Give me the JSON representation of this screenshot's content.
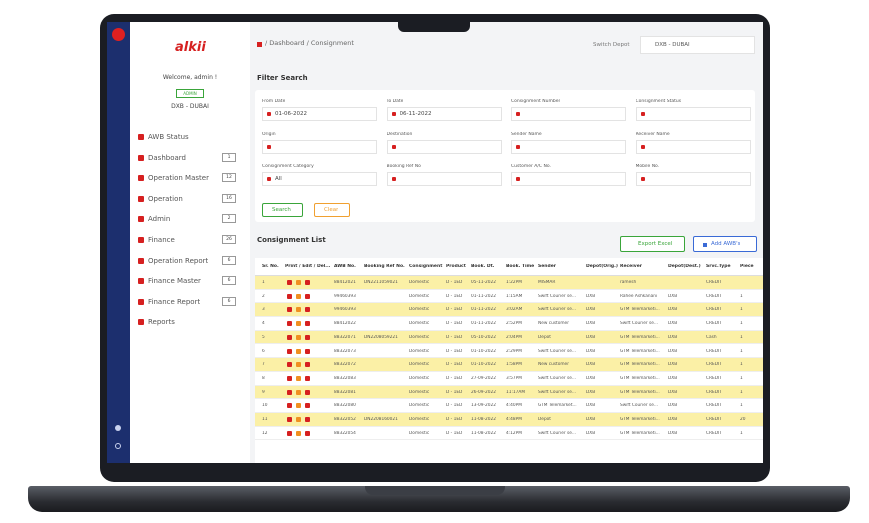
{
  "sidebar": {
    "logo": "alkii",
    "welcome": "Welcome, admin !",
    "role": "ADMIN",
    "depot": "DXB - DUBAI",
    "menu": [
      {
        "label": "AWB Status",
        "badge": null
      },
      {
        "label": "Dashboard",
        "badge": "1"
      },
      {
        "label": "Operation Master",
        "badge": "12"
      },
      {
        "label": "Operation",
        "badge": "16"
      },
      {
        "label": "Admin",
        "badge": "2"
      },
      {
        "label": "Finance",
        "badge": "26"
      },
      {
        "label": "Operation Report",
        "badge": "6"
      },
      {
        "label": "Finance Master",
        "badge": "6"
      },
      {
        "label": "Finance Report",
        "badge": "6"
      },
      {
        "label": "Reports",
        "badge": null
      }
    ]
  },
  "topbar": {
    "breadcrumb": "/ Dashboard / Consignment",
    "switch_label": "Switch Depot",
    "depot": "DXB - DUBAI"
  },
  "filter": {
    "title": "Filter Search",
    "fields": [
      {
        "label": "From Date",
        "value": "01-06-2022"
      },
      {
        "label": "To Date",
        "value": "06-11-2022"
      },
      {
        "label": "Consignment Number",
        "value": null
      },
      {
        "label": "Consignment Status",
        "value": null
      },
      {
        "label": "Origin",
        "value": null
      },
      {
        "label": "Destination",
        "value": null
      },
      {
        "label": "Sender Name",
        "value": null
      },
      {
        "label": "Receiver Name",
        "value": null
      },
      {
        "label": "Consignment Category",
        "value": "All"
      },
      {
        "label": "Booking Ref No",
        "value": null
      },
      {
        "label": "Customer A/C No.",
        "value": null
      },
      {
        "label": "Mobile No.",
        "value": null
      }
    ],
    "buttons": [
      "Search",
      "Clear"
    ]
  },
  "list": {
    "title": "Consignment List",
    "export": "Export Excel",
    "add": "Add AWB's",
    "table": {
      "columns": [
        "Sr. No.",
        "Print / Edit / Del...",
        "AWB No.",
        "Booking Ref No.",
        "Consignment",
        "Product",
        "Book. Dt.",
        "Book. Time",
        "Sender",
        "Depot(Orig.)",
        "Receiver",
        "Depot(Dest.)",
        "Srvc.Type",
        "Piece"
      ],
      "rows": [
        [
          "1",
          "88412021",
          "DN2211059021",
          "Domestic",
          "D - 1ED",
          "05-11-2022",
          "1:22PM",
          "MISMAR",
          null,
          "ramesh",
          null,
          "CREDIT",
          null
        ],
        [
          "2",
          "99460393",
          null,
          "Domestic",
          "D - 1ED",
          "01-11-2022",
          "1:15AM",
          "Swift Courier se...",
          "DXB",
          "Rahee Ashkanani",
          "DXB",
          "CREDIT",
          "1"
        ],
        [
          "3",
          "99460393",
          null,
          "Domestic",
          "D - 1ED",
          "01-11-2022",
          "3:02AM",
          "Swift Courier se...",
          "DXB",
          "GTM Telemarketi...",
          "DXB",
          "CREDIT",
          "1"
        ],
        [
          "4",
          "88412022",
          null,
          "Domestic",
          "D - 1ED",
          "01-11-2022",
          "2:52PM",
          "New customer",
          "DXB",
          "Swift Courier se...",
          "DXB",
          "CREDIT",
          "1"
        ],
        [
          "5",
          "88322071",
          "DN2208059221",
          "Domestic",
          "D - 1ED",
          "05-10-2022",
          "2:04PM",
          "Depot",
          "DXB",
          "GTM Telemarketi...",
          "DXB",
          "Cash",
          "1"
        ],
        [
          "6",
          "88322073",
          null,
          "Domestic",
          "D - 1ED",
          "01-10-2022",
          "2:29PM",
          "Swift Courier se...",
          "DXB",
          "GTM Telemarketi...",
          "DXB",
          "CREDIT",
          "1"
        ],
        [
          "7",
          "88322072",
          null,
          "Domestic",
          "D - 1ED",
          "01-10-2022",
          "1:58PM",
          "New customer",
          "DXB",
          "GTM Telemarketi...",
          "DXB",
          "CREDIT",
          "1"
        ],
        [
          "8",
          "88322083",
          null,
          "Domestic",
          "D - 1ED",
          "27-09-2022",
          "3:57PM",
          "Swift Courier se...",
          "DXB",
          "GTM Telemarketi...",
          "DXB",
          "CREDIT",
          "1"
        ],
        [
          "9",
          "88322081",
          null,
          "Domestic",
          "D - 1ED",
          "26-09-2022",
          "11:17AM",
          "Swift Courier se...",
          "DXB",
          "GTM Telemarketi...",
          "DXB",
          "CREDIT",
          "1"
        ],
        [
          "10",
          "88322080",
          null,
          "Domestic",
          "D - 1ED",
          "13-09-2022",
          "4:40PM",
          "GTM Telemarket...",
          "DXB",
          "Swift Courier se...",
          "DXB",
          "CREDIT",
          "1"
        ],
        [
          "11",
          "88322052",
          "DN2208160021",
          "Domestic",
          "D - 1ED",
          "11-08-2022",
          "4:48PM",
          "Depot",
          "DXB",
          "GTM Telemarketi...",
          "DXB",
          "CREDIT",
          "20"
        ],
        [
          "12",
          "88322054",
          null,
          "Domestic",
          "D - 1ED",
          "11-08-2022",
          "4:12PM",
          "Swift Courier se...",
          "DXB",
          "GTM Telemarketi...",
          "DXB",
          "CREDIT",
          "1"
        ]
      ]
    }
  }
}
